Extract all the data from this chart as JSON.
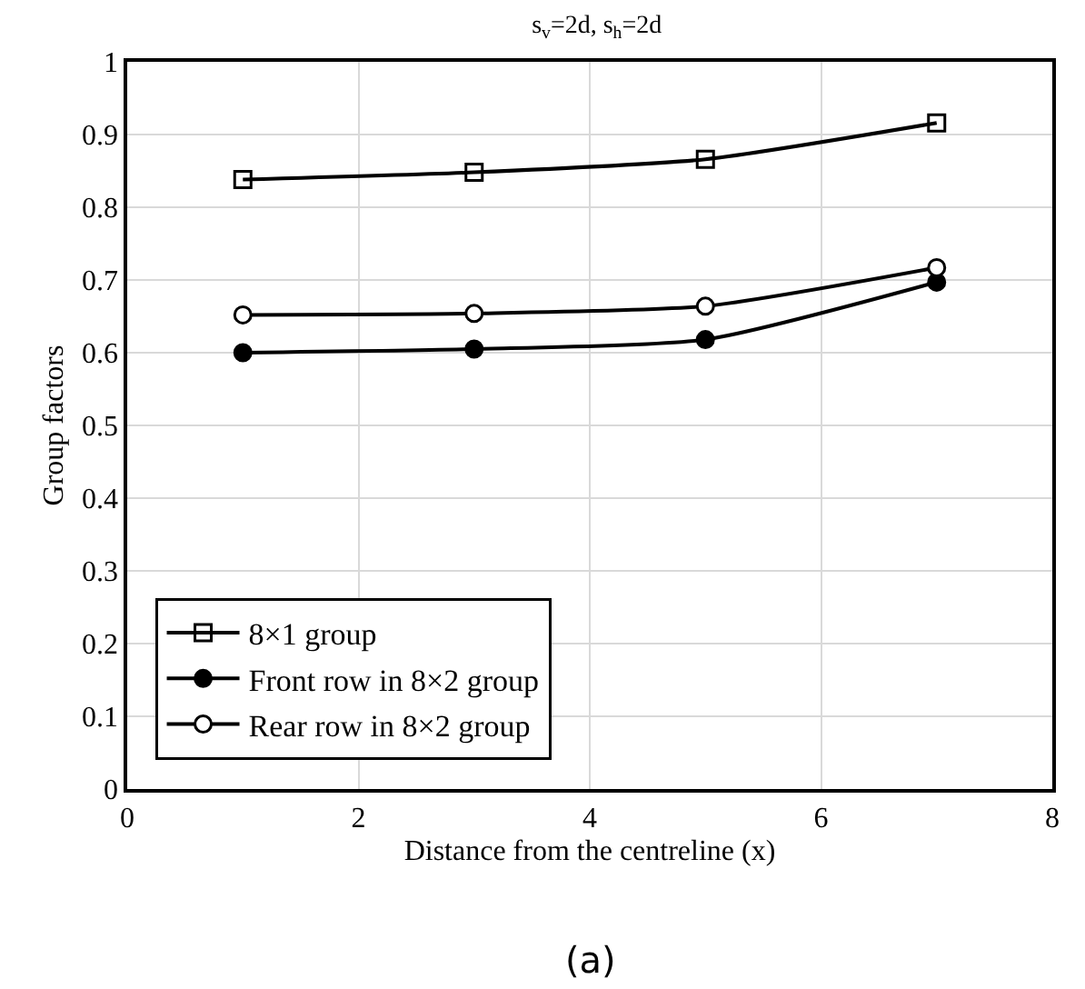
{
  "chart_data": {
    "type": "line",
    "title": "s$_{v}$=2d, s$_{h}$=2d",
    "xlabel": "Distance from the centreline (x)",
    "ylabel": "Group factors",
    "annotations": [
      "(a)"
    ],
    "x": [
      1,
      3,
      5,
      7
    ],
    "series": [
      {
        "name": "8×1 group",
        "color": "#000000",
        "marker": "square",
        "values": [
          0.838,
          0.848,
          0.866,
          0.916
        ]
      },
      {
        "name": "Front row in 8×2 group",
        "color": "#000000",
        "marker": "circle",
        "values": [
          0.6,
          0.605,
          0.618,
          0.697
        ]
      },
      {
        "name": "Rear row in 8×2 group",
        "color": "#000000",
        "marker": "circle-open",
        "values": [
          0.652,
          0.654,
          0.664,
          0.717
        ]
      }
    ],
    "xlim": [
      0,
      8
    ],
    "xticks": [
      0,
      2,
      4,
      6,
      8
    ],
    "ylim": [
      0,
      1
    ],
    "yticks": [
      0,
      0.1,
      0.2,
      0.3,
      0.4,
      0.5,
      0.6,
      0.7,
      0.8,
      0.9,
      1
    ],
    "grid": true,
    "legend": "bottom left",
    "line_style": "solid"
  }
}
